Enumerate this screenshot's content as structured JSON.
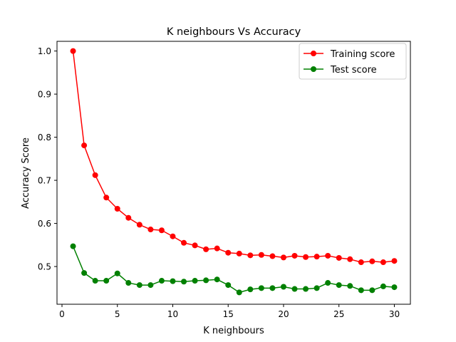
{
  "chart_data": {
    "type": "line",
    "title": "K neighbours Vs Accuracy",
    "xlabel": "K neighbours",
    "ylabel": "Accuracy Score",
    "xlim": [
      -0.45,
      31.45
    ],
    "ylim": [
      0.4125,
      1.0225
    ],
    "xticks": [
      0,
      5,
      10,
      15,
      20,
      25,
      30
    ],
    "xtick_labels": [
      "0",
      "5",
      "10",
      "15",
      "20",
      "25",
      "30"
    ],
    "yticks": [
      0.5,
      0.6,
      0.7,
      0.8,
      0.9,
      1.0
    ],
    "ytick_labels": [
      "0.5",
      "0.6",
      "0.7",
      "0.8",
      "0.9",
      "1.0"
    ],
    "grid": false,
    "legend_position": "top-right",
    "x": [
      1,
      2,
      3,
      4,
      5,
      6,
      7,
      8,
      9,
      10,
      11,
      12,
      13,
      14,
      15,
      16,
      17,
      18,
      19,
      20,
      21,
      22,
      23,
      24,
      25,
      26,
      27,
      28,
      29,
      30
    ],
    "series": [
      {
        "name": "Training score",
        "color": "#ff0000",
        "marker": "circle",
        "values": [
          1.0,
          0.781,
          0.712,
          0.66,
          0.634,
          0.613,
          0.597,
          0.586,
          0.584,
          0.57,
          0.555,
          0.549,
          0.54,
          0.542,
          0.532,
          0.53,
          0.526,
          0.527,
          0.524,
          0.521,
          0.525,
          0.522,
          0.523,
          0.525,
          0.52,
          0.517,
          0.51,
          0.512,
          0.51,
          0.513
        ]
      },
      {
        "name": "Test score",
        "color": "#008000",
        "marker": "circle",
        "values": [
          0.547,
          0.485,
          0.467,
          0.467,
          0.484,
          0.462,
          0.457,
          0.457,
          0.467,
          0.466,
          0.465,
          0.467,
          0.468,
          0.47,
          0.457,
          0.44,
          0.447,
          0.45,
          0.45,
          0.453,
          0.448,
          0.448,
          0.45,
          0.462,
          0.457,
          0.455,
          0.445,
          0.445,
          0.454,
          0.452
        ]
      }
    ]
  }
}
